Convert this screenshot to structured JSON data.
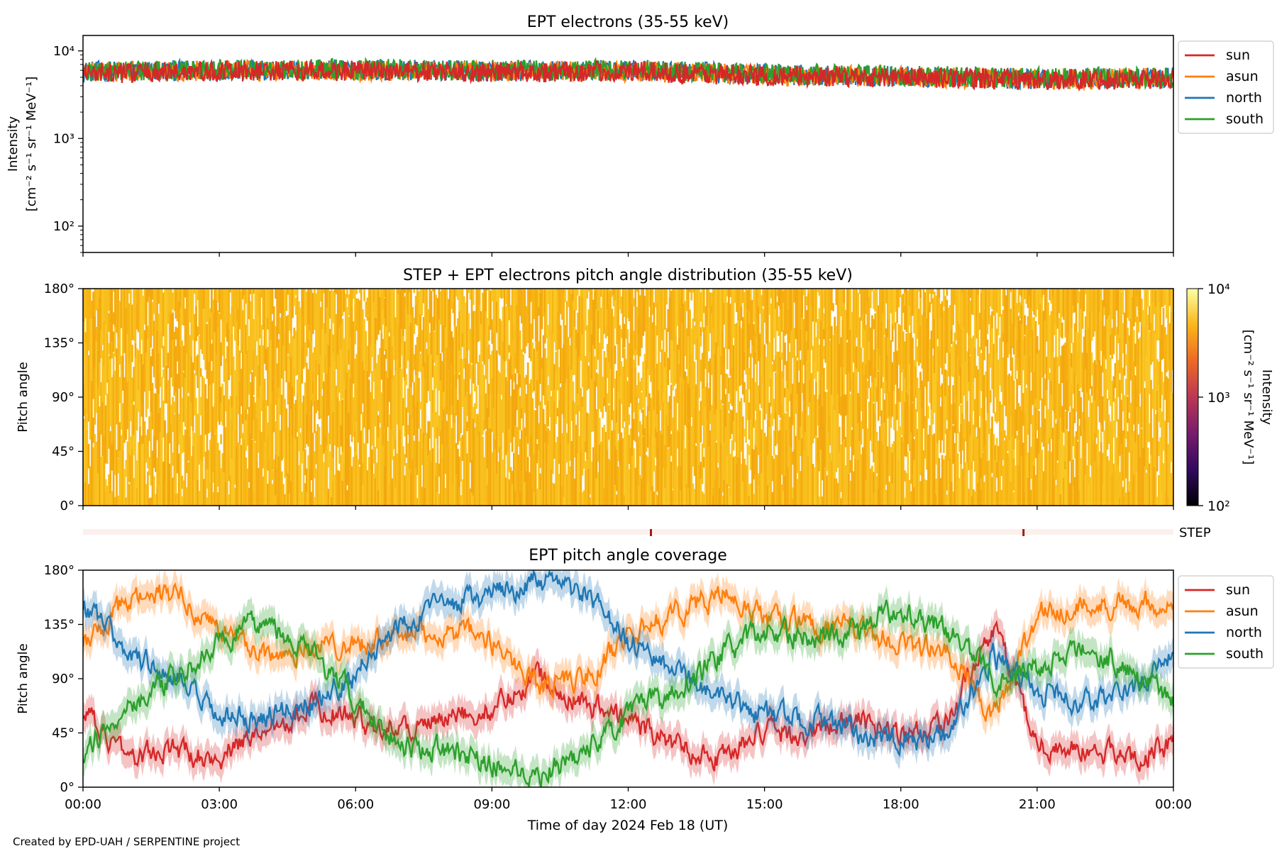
{
  "footer": "Created by EPD-UAH / SERPENTINE project",
  "xaxis_label": "Time of day 2024 Feb 18 (UT)",
  "time_ticks": [
    "00:00",
    "03:00",
    "06:00",
    "09:00",
    "12:00",
    "15:00",
    "18:00",
    "21:00",
    "00:00"
  ],
  "colors": {
    "sun": "#d62728",
    "asun": "#ff7f0e",
    "north": "#1f77b4",
    "south": "#2ca02c",
    "step_marker": "#a01c1c",
    "step_bar": "#fdf0ec"
  },
  "chart_data": [
    {
      "type": "line",
      "title": "EPT electrons (35-55 keV)",
      "ylabel_line1": "Intensity",
      "ylabel_line2": "[cm⁻² s⁻¹ sr⁻¹ MeV⁻¹]",
      "yscale": "log",
      "ylim": [
        50,
        15000
      ],
      "yticks": [
        {
          "value": 100,
          "label": "10²"
        },
        {
          "value": 1000,
          "label": "10³"
        },
        {
          "value": 10000,
          "label": "10⁴"
        }
      ],
      "xlim_hours": [
        0,
        24
      ],
      "legend_position": "outside-right",
      "series": [
        {
          "name": "sun",
          "hours": [
            0,
            3,
            6,
            9,
            12,
            15,
            18,
            21,
            24
          ],
          "values": [
            5600,
            5800,
            5900,
            5700,
            5800,
            5200,
            5000,
            4700,
            4800
          ]
        },
        {
          "name": "asun",
          "hours": [
            0,
            3,
            6,
            9,
            12,
            15,
            18,
            21,
            24
          ],
          "values": [
            5700,
            5900,
            6000,
            5800,
            5900,
            5300,
            5100,
            4800,
            4900
          ]
        },
        {
          "name": "north",
          "hours": [
            0,
            3,
            6,
            9,
            12,
            15,
            18,
            21,
            24
          ],
          "values": [
            5800,
            6000,
            6100,
            5900,
            6000,
            5400,
            5100,
            4800,
            4900
          ]
        },
        {
          "name": "south",
          "hours": [
            0,
            3,
            6,
            9,
            12,
            15,
            18,
            21,
            24
          ],
          "values": [
            5900,
            6100,
            6200,
            6000,
            6100,
            5500,
            5200,
            4900,
            5000
          ]
        }
      ]
    },
    {
      "type": "heatmap",
      "title": "STEP + EPT electrons pitch angle distribution (35-55 keV)",
      "ylabel": "Pitch angle",
      "ylim": [
        0,
        180
      ],
      "yticks": [
        {
          "value": 0,
          "label": "0°"
        },
        {
          "value": 45,
          "label": "45°"
        },
        {
          "value": 90,
          "label": "90°"
        },
        {
          "value": 135,
          "label": "135°"
        },
        {
          "value": 180,
          "label": "180°"
        }
      ],
      "xlim_hours": [
        0,
        24
      ],
      "colorbar": {
        "label_line1": "Intensity",
        "label_line2": "[cm⁻² s⁻¹ sr⁻¹ MeV⁻¹]",
        "scale": "log",
        "range": [
          100,
          10000
        ],
        "ticks": [
          {
            "value": 100,
            "label": "10²"
          },
          {
            "value": 1000,
            "label": "10³"
          },
          {
            "value": 10000,
            "label": "10⁴"
          }
        ],
        "colormap": [
          "#000004",
          "#320a5e",
          "#781c6d",
          "#bc3754",
          "#ed6925",
          "#fbb61a",
          "#fcffa4"
        ]
      },
      "typical_intensity": 5500
    },
    {
      "type": "timeline",
      "label": "STEP",
      "marker_hours": [
        12.5,
        20.7
      ]
    },
    {
      "type": "line",
      "title": "EPT pitch angle coverage",
      "ylabel": "Pitch angle",
      "ylim": [
        0,
        180
      ],
      "yticks": [
        {
          "value": 0,
          "label": "0°"
        },
        {
          "value": 45,
          "label": "45°"
        },
        {
          "value": 90,
          "label": "90°"
        },
        {
          "value": 135,
          "label": "135°"
        },
        {
          "value": 180,
          "label": "180°"
        }
      ],
      "xlim_hours": [
        0,
        24
      ],
      "legend_position": "outside-right",
      "series": [
        {
          "name": "sun",
          "hours": [
            0,
            1,
            2,
            3,
            4,
            5,
            6,
            7,
            8,
            9,
            10,
            11,
            12,
            13,
            14,
            15,
            16,
            17,
            18,
            19,
            20,
            21,
            22,
            23,
            24
          ],
          "values": [
            60,
            25,
            30,
            25,
            50,
            70,
            55,
            50,
            55,
            65,
            95,
            70,
            55,
            35,
            25,
            45,
            45,
            55,
            45,
            55,
            130,
            35,
            30,
            25,
            35
          ]
        },
        {
          "name": "asun",
          "hours": [
            0,
            1,
            2,
            3,
            4,
            5,
            6,
            7,
            8,
            9,
            10,
            11,
            12,
            13,
            14,
            15,
            16,
            17,
            18,
            19,
            20,
            21,
            22,
            23,
            24
          ],
          "values": [
            120,
            155,
            160,
            130,
            110,
            115,
            120,
            125,
            130,
            120,
            85,
            90,
            125,
            145,
            160,
            140,
            135,
            130,
            120,
            110,
            60,
            145,
            150,
            155,
            150
          ]
        },
        {
          "name": "north",
          "hours": [
            0,
            1,
            2,
            3,
            4,
            5,
            6,
            7,
            8,
            9,
            10,
            11,
            12,
            13,
            14,
            15,
            16,
            17,
            18,
            19,
            20,
            21,
            22,
            23,
            24
          ],
          "values": [
            150,
            110,
            90,
            55,
            60,
            70,
            95,
            140,
            150,
            160,
            170,
            160,
            120,
            100,
            70,
            60,
            55,
            45,
            35,
            45,
            110,
            80,
            70,
            80,
            110
          ]
        },
        {
          "name": "south",
          "hours": [
            0,
            1,
            2,
            3,
            4,
            5,
            6,
            7,
            8,
            9,
            10,
            11,
            12,
            13,
            14,
            15,
            16,
            17,
            18,
            19,
            20,
            21,
            22,
            23,
            24
          ],
          "values": [
            30,
            70,
            90,
            120,
            140,
            110,
            70,
            35,
            30,
            20,
            10,
            30,
            60,
            80,
            110,
            130,
            125,
            130,
            150,
            130,
            90,
            100,
            115,
            100,
            70
          ]
        }
      ]
    }
  ]
}
